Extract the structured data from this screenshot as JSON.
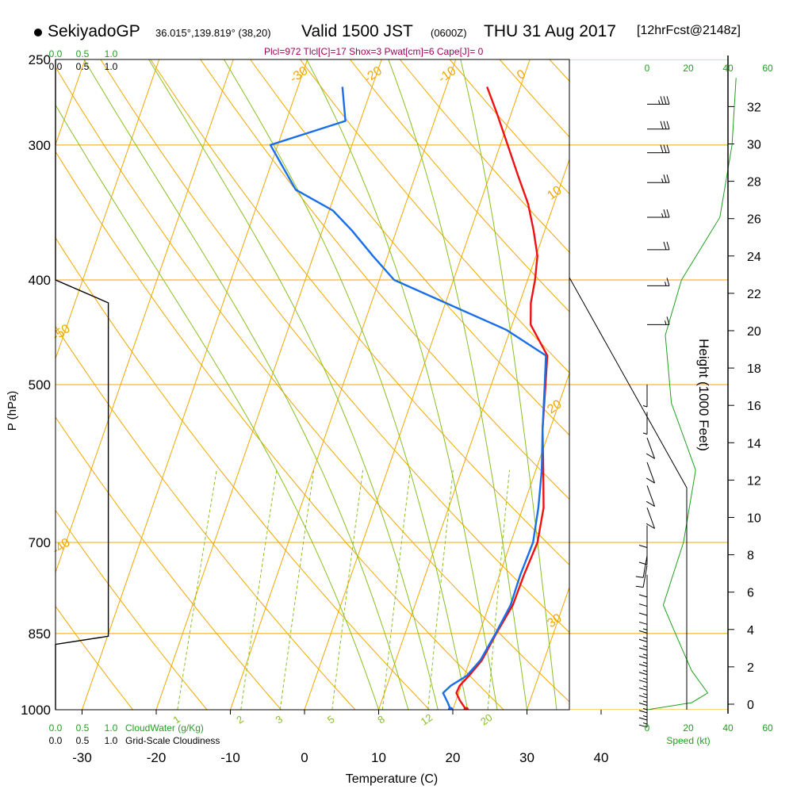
{
  "header": {
    "station": "SekiyadoGP",
    "location": "36.015°,139.819° (38,20)",
    "valid_prefix": "Valid 1500 JST",
    "valid_zulu": "(0600Z)",
    "valid_date": "THU 31 Aug 2017",
    "forecast_prefix": "[",
    "forecast": "12hrFcst@2148z",
    "forecast_suffix": "]",
    "stats": "Plcl=972 Tlcl[C]=17 Shox=3 Pwat[cm]=6 Cape[J]= 0"
  },
  "colors": {
    "temperature": "#ee1111",
    "dewpoint": "#1a6fe8",
    "isobar_isotherm": "#f0a800",
    "mixing_ratio": "#88c020",
    "moist_adiabat": "#88c020",
    "cloud_water": "#20a020",
    "cloudiness": "#000000",
    "wind_speed": "#20a020"
  },
  "chart_data": {
    "type": "skew-t",
    "xlabel": "Temperature (C)",
    "ylabel": "P (hPa)",
    "right_label": "Height (1000 Feet)",
    "xlim": [
      -30,
      40
    ],
    "ylim": [
      1000,
      250
    ],
    "x_ticks": [
      -30,
      -20,
      -10,
      0,
      10,
      20,
      30,
      40
    ],
    "pressure_ticks": [
      250,
      300,
      400,
      500,
      700,
      850,
      1000
    ],
    "height_ticks": [
      0,
      2,
      4,
      6,
      8,
      10,
      12,
      14,
      16,
      18,
      20,
      22,
      24,
      26,
      28,
      30,
      32
    ],
    "isotherm_labels": [
      {
        "text": "0",
        "t": 0
      },
      {
        "text": "10",
        "t": 10
      },
      {
        "text": "20",
        "t": 20
      },
      {
        "text": "30",
        "t": 30
      },
      {
        "text": "-10",
        "t": -10
      },
      {
        "text": "-20",
        "t": -20
      },
      {
        "text": "-30",
        "t": -30
      },
      {
        "text": "-40",
        "t": -40
      },
      {
        "text": "-50",
        "t": -50
      }
    ],
    "mixing_ratio_labels": [
      "1",
      "2",
      "3",
      "5",
      "8",
      "12",
      "20"
    ],
    "mixing_ratio_values": [
      1,
      2,
      3,
      5,
      8,
      12,
      20
    ],
    "moist_adiabat_t": [
      10,
      14,
      18,
      22,
      26,
      30,
      34
    ],
    "series": [
      {
        "name": "temperature",
        "points": [
          {
            "p": 1000,
            "t": 21.8
          },
          {
            "p": 980,
            "t": 20.5
          },
          {
            "p": 965,
            "t": 19.7
          },
          {
            "p": 950,
            "t": 19.8
          },
          {
            "p": 930,
            "t": 20.6
          },
          {
            "p": 900,
            "t": 21.6
          },
          {
            "p": 850,
            "t": 22.3
          },
          {
            "p": 800,
            "t": 23.2
          },
          {
            "p": 750,
            "t": 23.3
          },
          {
            "p": 700,
            "t": 23.6
          },
          {
            "p": 650,
            "t": 22.8
          },
          {
            "p": 600,
            "t": 21.0
          },
          {
            "p": 550,
            "t": 19.0
          },
          {
            "p": 500,
            "t": 17.3
          },
          {
            "p": 470,
            "t": 16.2
          },
          {
            "p": 440,
            "t": 12.5
          },
          {
            "p": 420,
            "t": 11.5
          },
          {
            "p": 400,
            "t": 11.0
          },
          {
            "p": 380,
            "t": 10.2
          },
          {
            "p": 360,
            "t": 8.5
          },
          {
            "p": 340,
            "t": 6.5
          },
          {
            "p": 320,
            "t": 3.8
          },
          {
            "p": 300,
            "t": 1.0
          },
          {
            "p": 280,
            "t": -2.0
          },
          {
            "p": 265,
            "t": -4.5
          }
        ]
      },
      {
        "name": "dewpoint",
        "points": [
          {
            "p": 1000,
            "t": 19.7
          },
          {
            "p": 985,
            "t": 19.0
          },
          {
            "p": 965,
            "t": 17.9
          },
          {
            "p": 950,
            "t": 18.6
          },
          {
            "p": 930,
            "t": 20.3
          },
          {
            "p": 900,
            "t": 21.4
          },
          {
            "p": 850,
            "t": 22.2
          },
          {
            "p": 800,
            "t": 22.9
          },
          {
            "p": 750,
            "t": 22.8
          },
          {
            "p": 700,
            "t": 23.0
          },
          {
            "p": 650,
            "t": 22.1
          },
          {
            "p": 600,
            "t": 20.8
          },
          {
            "p": 550,
            "t": 19.0
          },
          {
            "p": 500,
            "t": 17.2
          },
          {
            "p": 470,
            "t": 16.0
          },
          {
            "p": 445,
            "t": 9.5
          },
          {
            "p": 420,
            "t": 0.0
          },
          {
            "p": 400,
            "t": -8.0
          },
          {
            "p": 380,
            "t": -12.0
          },
          {
            "p": 360,
            "t": -16.0
          },
          {
            "p": 345,
            "t": -19.5
          },
          {
            "p": 330,
            "t": -25.5
          },
          {
            "p": 300,
            "t": -31.0
          },
          {
            "p": 285,
            "t": -22.0
          },
          {
            "p": 265,
            "t": -24.0
          }
        ]
      }
    ],
    "cloud_water_axis": {
      "label": "CloudWater (g/Kg)",
      "ticks": [
        "0.0",
        "0.5",
        "1.0"
      ]
    },
    "cloudiness_axis": {
      "label": "Grid-Scale Cloudiness",
      "ticks": [
        "0.0",
        "0.5",
        "1.0"
      ]
    },
    "wind_speed_axis": {
      "label": "Speed (kt)",
      "ticks": [
        "0",
        "20",
        "40",
        "60"
      ]
    },
    "cloudiness_profile": [
      {
        "p": 1000,
        "v": 0.0
      },
      {
        "p": 870,
        "v": 0.0
      },
      {
        "p": 855,
        "v": 0.98
      },
      {
        "p": 420,
        "v": 0.98
      },
      {
        "p": 400,
        "v": 0.0
      },
      {
        "p": 250,
        "v": 0.0
      }
    ],
    "wind_speed_profile": [
      {
        "p": 1000,
        "v": 0
      },
      {
        "p": 985,
        "v": 22
      },
      {
        "p": 965,
        "v": 30
      },
      {
        "p": 920,
        "v": 22
      },
      {
        "p": 850,
        "v": 14
      },
      {
        "p": 800,
        "v": 8
      },
      {
        "p": 700,
        "v": 18
      },
      {
        "p": 600,
        "v": 24
      },
      {
        "p": 520,
        "v": 12
      },
      {
        "p": 450,
        "v": 9
      },
      {
        "p": 400,
        "v": 17
      },
      {
        "p": 350,
        "v": 36
      },
      {
        "p": 300,
        "v": 42
      },
      {
        "p": 260,
        "v": 44
      }
    ],
    "winds": [
      {
        "p": 990,
        "speed": 15,
        "dir": 180
      },
      {
        "p": 975,
        "speed": 15,
        "dir": 180
      },
      {
        "p": 960,
        "speed": 15,
        "dir": 180
      },
      {
        "p": 945,
        "speed": 15,
        "dir": 180
      },
      {
        "p": 930,
        "speed": 15,
        "dir": 180
      },
      {
        "p": 915,
        "speed": 15,
        "dir": 180
      },
      {
        "p": 900,
        "speed": 15,
        "dir": 180
      },
      {
        "p": 885,
        "speed": 15,
        "dir": 180
      },
      {
        "p": 870,
        "speed": 15,
        "dir": 180
      },
      {
        "p": 855,
        "speed": 15,
        "dir": 180
      },
      {
        "p": 840,
        "speed": 15,
        "dir": 180
      },
      {
        "p": 825,
        "speed": 15,
        "dir": 180
      },
      {
        "p": 810,
        "speed": 15,
        "dir": 180
      },
      {
        "p": 795,
        "speed": 10,
        "dir": 180
      },
      {
        "p": 780,
        "speed": 10,
        "dir": 180
      },
      {
        "p": 765,
        "speed": 10,
        "dir": 180
      },
      {
        "p": 750,
        "speed": 10,
        "dir": 180
      },
      {
        "p": 735,
        "speed": 10,
        "dir": 170
      },
      {
        "p": 720,
        "speed": 10,
        "dir": 170
      },
      {
        "p": 700,
        "speed": 10,
        "dir": 180
      },
      {
        "p": 675,
        "speed": 10,
        "dir": 180
      },
      {
        "p": 650,
        "speed": 10,
        "dir": 200
      },
      {
        "p": 620,
        "speed": 10,
        "dir": 200
      },
      {
        "p": 590,
        "speed": 10,
        "dir": 200
      },
      {
        "p": 560,
        "speed": 10,
        "dir": 200
      },
      {
        "p": 530,
        "speed": 5,
        "dir": 180
      },
      {
        "p": 500,
        "speed": 5,
        "dir": 180
      },
      {
        "p": 440,
        "speed": 15,
        "dir": 270
      },
      {
        "p": 405,
        "speed": 15,
        "dir": 270
      },
      {
        "p": 375,
        "speed": 20,
        "dir": 270
      },
      {
        "p": 350,
        "speed": 25,
        "dir": 270
      },
      {
        "p": 325,
        "speed": 25,
        "dir": 270
      },
      {
        "p": 305,
        "speed": 30,
        "dir": 270
      },
      {
        "p": 290,
        "speed": 30,
        "dir": 270
      },
      {
        "p": 275,
        "speed": 35,
        "dir": 270
      }
    ]
  }
}
